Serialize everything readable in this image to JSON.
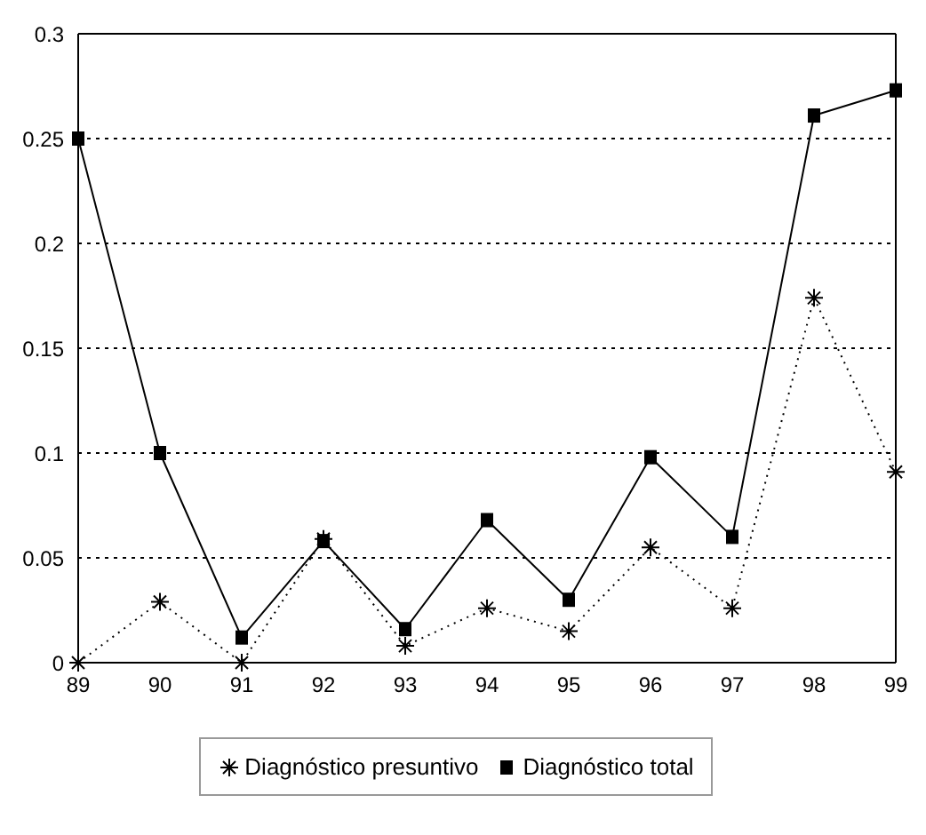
{
  "chart_data": {
    "type": "line",
    "x": [
      89,
      90,
      91,
      92,
      93,
      94,
      95,
      96,
      97,
      98,
      99
    ],
    "series": [
      {
        "name": "Diagnóstico presuntivo",
        "color": "#000000",
        "marker": "cross",
        "line_style": "dotted",
        "values": [
          0,
          0.029,
          0,
          0.059,
          0.008,
          0.026,
          0.015,
          0.055,
          0.026,
          0.174,
          0.091
        ]
      },
      {
        "name": "Diagnóstico total",
        "color": "#000000",
        "marker": "square",
        "line_style": "solid",
        "values": [
          0.25,
          0.1,
          0.012,
          0.058,
          0.016,
          0.068,
          0.03,
          0.098,
          0.06,
          0.261,
          0.273
        ]
      }
    ],
    "xlim": [
      89,
      99
    ],
    "xticks": [
      89,
      90,
      91,
      92,
      93,
      94,
      95,
      96,
      97,
      98,
      99
    ],
    "ylim": [
      0,
      0.3
    ],
    "yticks": [
      0,
      0.05,
      0.1,
      0.15,
      0.2,
      0.25,
      0.3
    ],
    "grid": "y",
    "legend": "bottom"
  }
}
